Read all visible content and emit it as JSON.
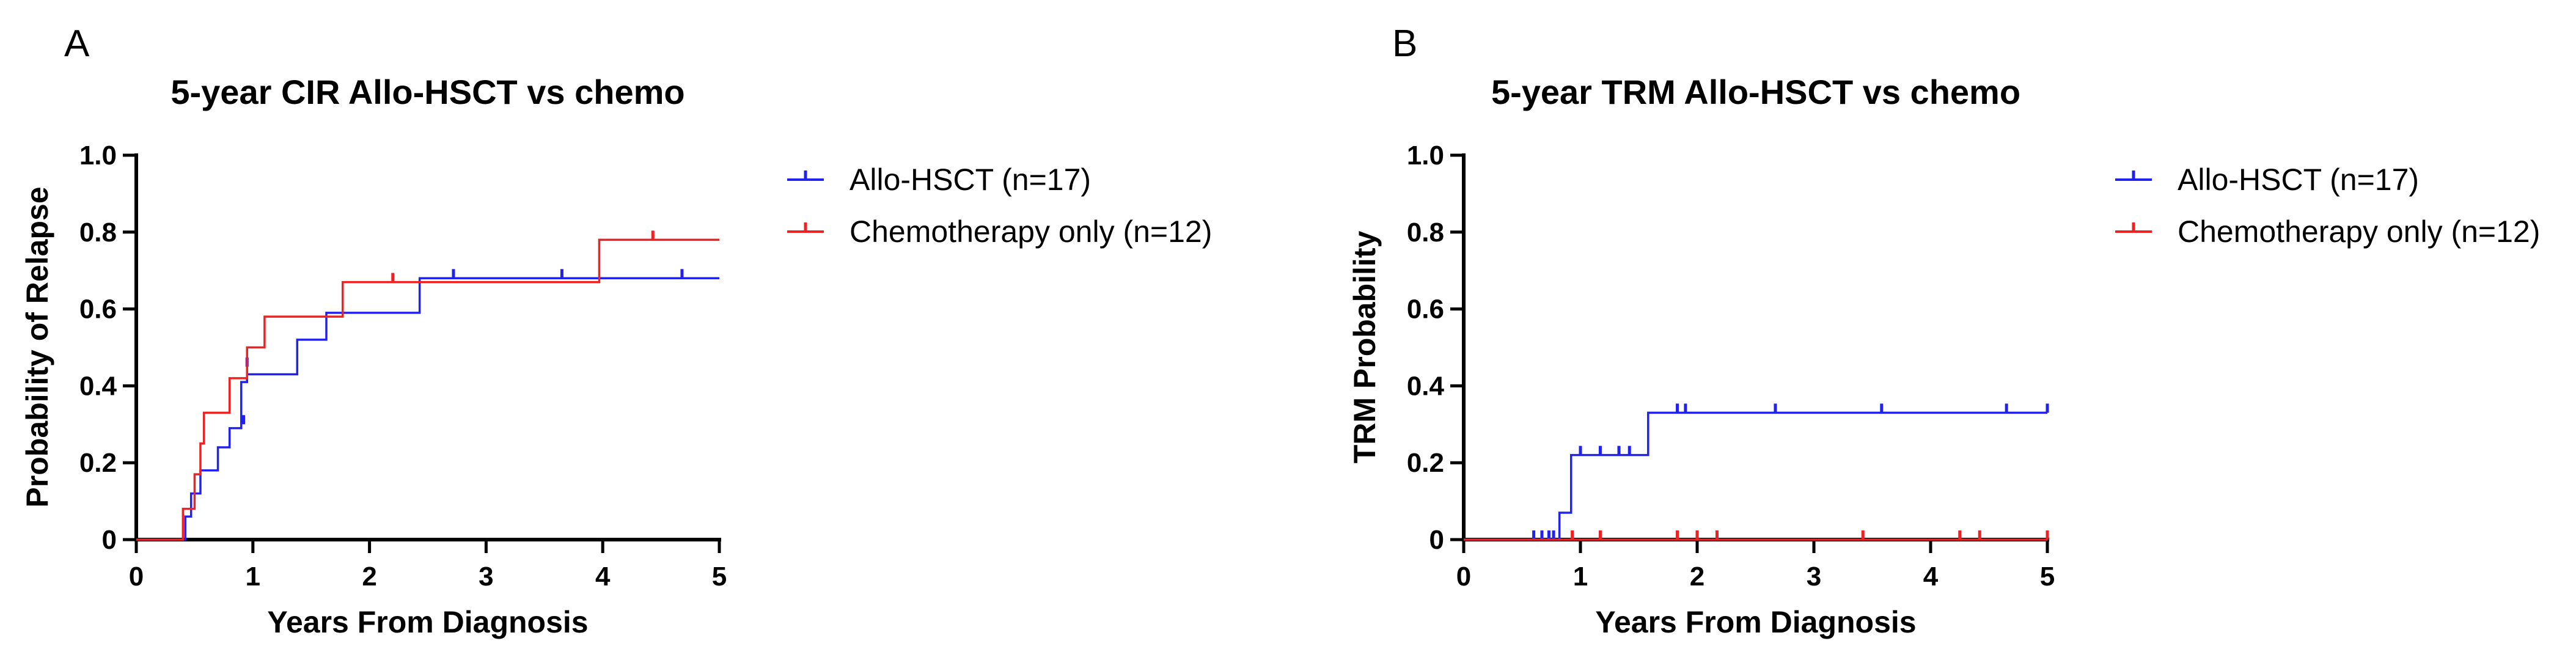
{
  "chart_data": [
    {
      "type": "line",
      "step": true,
      "panel": "A",
      "title": "5-year CIR Allo-HSCT vs chemo",
      "xlabel": "Years From Diagnosis",
      "ylabel": "Probability of Relapse",
      "xlim": [
        0,
        5
      ],
      "ylim": [
        0,
        1
      ],
      "xticks": [
        0,
        1,
        2,
        3,
        4,
        5
      ],
      "xtick_labels": [
        "0",
        "1",
        "2",
        "3",
        "4",
        "5"
      ],
      "yticks": [
        0,
        0.2,
        0.4,
        0.6,
        0.8,
        1
      ],
      "ytick_labels": [
        "0",
        "0.2",
        "0.4",
        "0.6",
        "0.8",
        "1.0"
      ],
      "legend_position": "right",
      "series": [
        {
          "name": "Allo-HSCT (n=17)",
          "color": "#2222ee",
          "x": [
            0,
            0.42,
            0.47,
            0.55,
            0.7,
            0.8,
            0.9,
            0.95,
            1.38,
            1.63,
            2.43,
            5
          ],
          "y": [
            0,
            0.06,
            0.12,
            0.18,
            0.24,
            0.29,
            0.41,
            0.43,
            0.52,
            0.59,
            0.68,
            0.68
          ],
          "censored": [
            {
              "x": 0.92,
              "y": 0.3
            },
            {
              "x": 0.95,
              "y": 0.45
            },
            {
              "x": 2.72,
              "y": 0.68
            },
            {
              "x": 3.65,
              "y": 0.68
            },
            {
              "x": 4.68,
              "y": 0.68
            }
          ]
        },
        {
          "name": "Chemotherapy only (n=12)",
          "color": "#ee2222",
          "x": [
            0,
            0.4,
            0.5,
            0.55,
            0.58,
            0.8,
            0.95,
            1.1,
            1.77,
            3.97,
            5
          ],
          "y": [
            0,
            0.08,
            0.17,
            0.25,
            0.33,
            0.42,
            0.5,
            0.58,
            0.67,
            0.78,
            0.78
          ],
          "censored": [
            {
              "x": 2.2,
              "y": 0.67
            },
            {
              "x": 4.43,
              "y": 0.78
            }
          ]
        }
      ]
    },
    {
      "type": "line",
      "step": true,
      "panel": "B",
      "title": "5-year TRM Allo-HSCT vs chemo",
      "xlabel": "Years From Diagnosis",
      "ylabel": "TRM Probability",
      "xlim": [
        0,
        5
      ],
      "ylim": [
        0,
        1
      ],
      "xticks": [
        0,
        1,
        2,
        3,
        4,
        5
      ],
      "xtick_labels": [
        "0",
        "1",
        "2",
        "3",
        "4",
        "5"
      ],
      "yticks": [
        0,
        0.2,
        0.4,
        0.6,
        0.8,
        1
      ],
      "ytick_labels": [
        "0",
        "0.2",
        "0.4",
        "0.6",
        "0.8",
        "1.0"
      ],
      "legend_position": "right",
      "series": [
        {
          "name": "Allo-HSCT (n=17)",
          "color": "#2222ee",
          "x": [
            0,
            0.82,
            0.92,
            1.58,
            5
          ],
          "y": [
            0,
            0.07,
            0.22,
            0.33,
            0.33
          ],
          "censored": [
            {
              "x": 0.6,
              "y": 0
            },
            {
              "x": 0.67,
              "y": 0
            },
            {
              "x": 0.73,
              "y": 0
            },
            {
              "x": 0.77,
              "y": 0
            },
            {
              "x": 1.0,
              "y": 0.22
            },
            {
              "x": 1.17,
              "y": 0.22
            },
            {
              "x": 1.33,
              "y": 0.22
            },
            {
              "x": 1.42,
              "y": 0.22
            },
            {
              "x": 1.83,
              "y": 0.33
            },
            {
              "x": 1.9,
              "y": 0.33
            },
            {
              "x": 2.67,
              "y": 0.33
            },
            {
              "x": 3.58,
              "y": 0.33
            },
            {
              "x": 4.65,
              "y": 0.33
            },
            {
              "x": 5.0,
              "y": 0.33
            }
          ]
        },
        {
          "name": "Chemotherapy only (n=12)",
          "color": "#ee2222",
          "x": [
            0,
            5
          ],
          "y": [
            0,
            0
          ],
          "censored": [
            {
              "x": 0.93,
              "y": 0
            },
            {
              "x": 1.17,
              "y": 0
            },
            {
              "x": 1.83,
              "y": 0
            },
            {
              "x": 2.0,
              "y": 0
            },
            {
              "x": 2.17,
              "y": 0
            },
            {
              "x": 3.42,
              "y": 0
            },
            {
              "x": 4.25,
              "y": 0
            },
            {
              "x": 4.42,
              "y": 0
            },
            {
              "x": 5.0,
              "y": 0
            }
          ]
        }
      ]
    }
  ]
}
